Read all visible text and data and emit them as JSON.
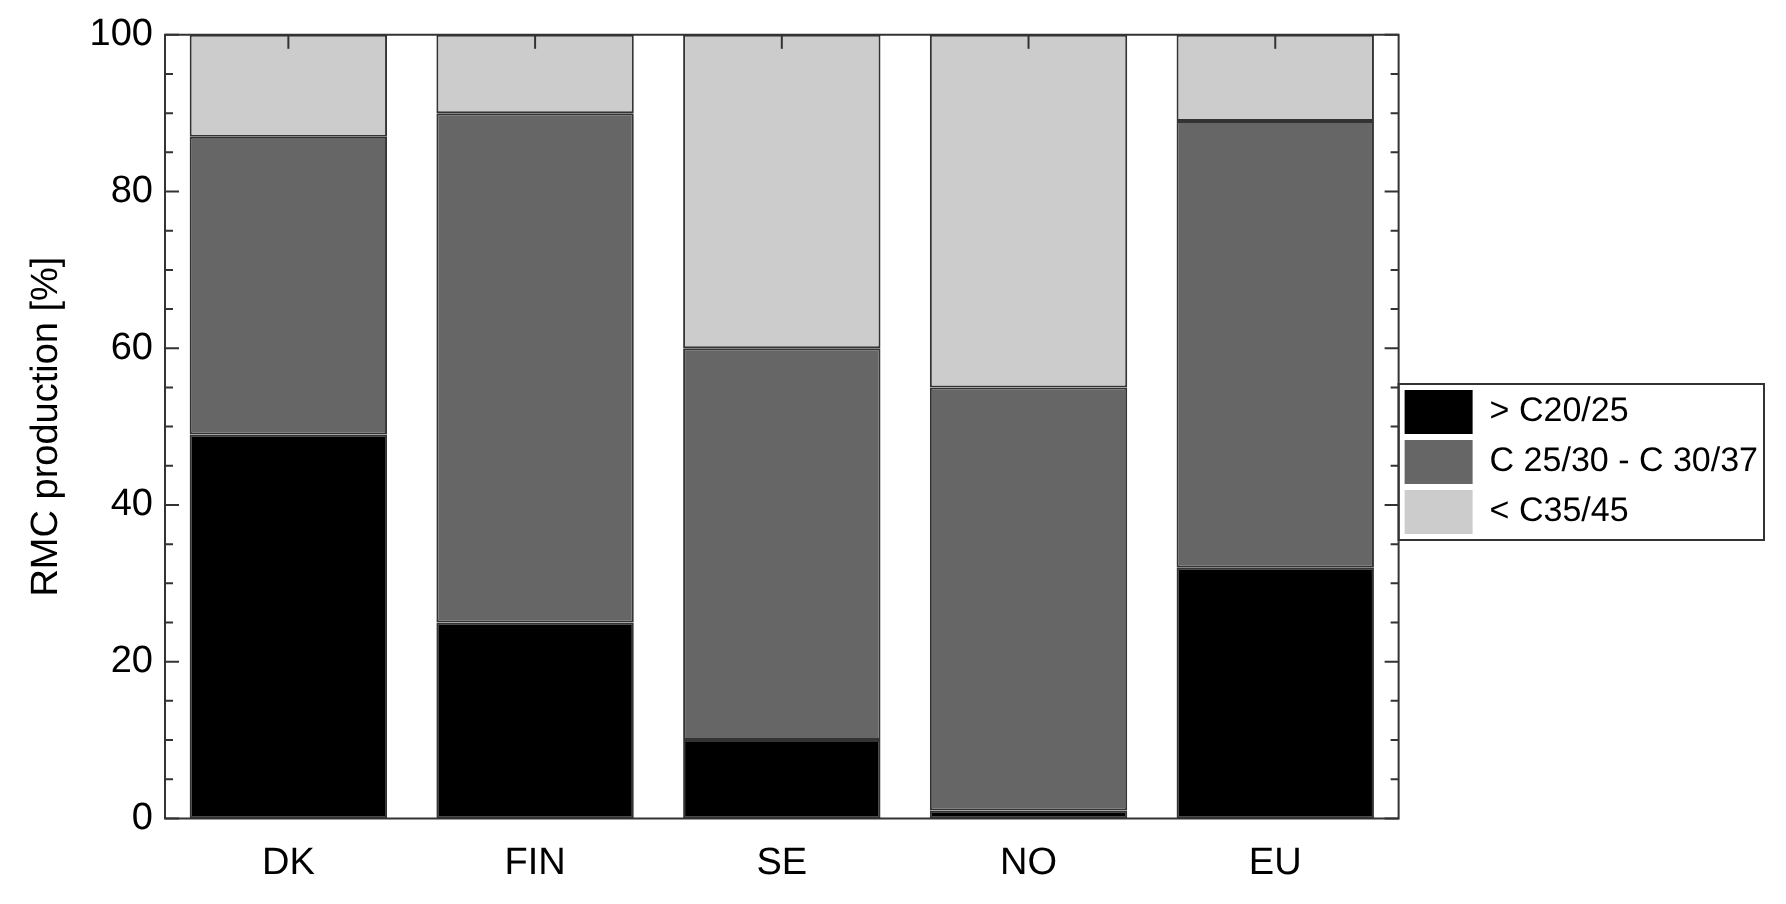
{
  "chart_data": {
    "type": "bar",
    "stacked": true,
    "ylabel": "RMC production [%]",
    "categories": [
      "DK",
      "FIN",
      "SE",
      "NO",
      "EU"
    ],
    "series": [
      {
        "name": "> C20/25",
        "color": "#000000",
        "values": [
          49,
          25,
          10,
          1,
          32
        ]
      },
      {
        "name": "C 25/30 - C 30/37",
        "color": "#666666",
        "values": [
          38,
          65,
          50,
          54,
          57
        ]
      },
      {
        "name": "< C35/45",
        "color": "#cccccc",
        "values": [
          13,
          10,
          40,
          45,
          11
        ]
      }
    ],
    "ylim": [
      0,
      100
    ],
    "yticks": [
      0,
      {
        "value": 5,
        "label": null
      },
      {
        "value": 10,
        "label": null
      },
      {
        "value": 15,
        "label": null
      },
      20,
      {
        "value": 25,
        "label": null
      },
      {
        "value": 30,
        "label": null
      },
      {
        "value": 35,
        "label": null
      },
      40,
      {
        "value": 45,
        "label": null
      },
      {
        "value": 50,
        "label": null
      },
      {
        "value": 55,
        "label": null
      },
      60,
      {
        "value": 65,
        "label": null
      },
      {
        "value": 70,
        "label": null
      },
      {
        "value": 75,
        "label": null
      },
      80,
      {
        "value": 85,
        "label": null
      },
      {
        "value": 90,
        "label": null
      },
      {
        "value": 95,
        "label": null
      },
      100
    ],
    "legend": "right"
  }
}
